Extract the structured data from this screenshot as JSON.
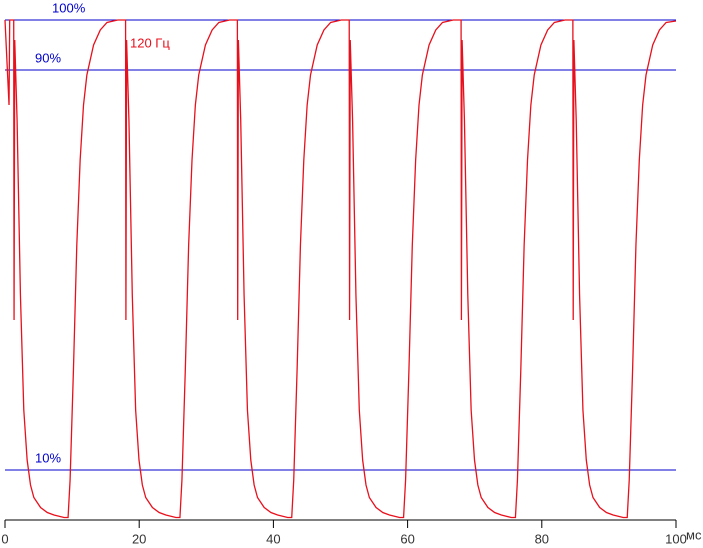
{
  "chart_data": {
    "type": "line",
    "annotation": "120 Гц",
    "x_unit": "мс",
    "xlim": [
      0,
      100
    ],
    "xticks": [
      0,
      20,
      40,
      60,
      80,
      100
    ],
    "ylim": [
      0,
      104
    ],
    "yticks": [
      {
        "value": 10,
        "label": "10%"
      },
      {
        "value": 90,
        "label": "90%"
      },
      {
        "value": 100,
        "label": "100%"
      }
    ],
    "grid_color": "#0000cc",
    "series": [
      {
        "name": "120 Гц",
        "color": "#e8101c",
        "x": [
          0,
          0.6,
          0.7,
          1.3,
          1.35,
          1.45,
          1.8,
          2.3,
          2.8,
          3.3,
          3.8,
          4.3,
          5.3,
          6.3,
          7.3,
          8.8,
          9.4,
          9.7,
          10.2,
          10.7,
          11.2,
          11.7,
          12.2,
          13.2,
          14.2,
          15.2,
          16.8,
          17.97,
          18.02,
          18.12,
          18.47,
          18.97,
          19.47,
          19.97,
          20.47,
          20.97,
          21.97,
          22.97,
          23.97,
          25.47,
          26.07,
          26.37,
          26.87,
          27.37,
          27.87,
          28.37,
          28.87,
          29.87,
          30.87,
          31.87,
          33.47,
          34.63,
          34.68,
          34.78,
          35.13,
          35.63,
          36.13,
          36.63,
          37.13,
          37.63,
          38.63,
          39.63,
          40.63,
          42.13,
          42.73,
          43.03,
          43.53,
          44.03,
          44.53,
          45.03,
          45.53,
          46.53,
          47.53,
          48.53,
          50.13,
          51.3,
          51.35,
          51.45,
          51.8,
          52.3,
          52.8,
          53.3,
          53.8,
          54.3,
          55.3,
          56.3,
          57.3,
          58.8,
          59.4,
          59.7,
          60.2,
          60.7,
          61.2,
          61.7,
          62.2,
          63.2,
          64.2,
          65.2,
          66.8,
          67.97,
          68.02,
          68.12,
          68.47,
          68.97,
          69.47,
          69.97,
          70.47,
          70.97,
          71.97,
          72.97,
          73.97,
          75.47,
          76.07,
          76.37,
          76.87,
          77.37,
          77.87,
          78.37,
          78.87,
          79.87,
          80.87,
          81.87,
          83.47,
          84.63,
          84.68,
          84.78,
          85.13,
          85.63,
          86.13,
          86.63,
          87.13,
          87.63,
          88.63,
          89.63,
          90.63,
          92.13,
          92.73,
          93.03,
          93.53,
          94.03,
          94.53,
          95.03,
          95.53,
          96.53,
          97.53,
          98.53,
          100
        ],
        "values": [
          100,
          83,
          100,
          100,
          40,
          96,
          80,
          45,
          22,
          12,
          7,
          4.5,
          2.5,
          1.5,
          1,
          0.5,
          0.5,
          8,
          30,
          55,
          72,
          83,
          89,
          95,
          98,
          99.5,
          100,
          100,
          40,
          96,
          80,
          45,
          22,
          12,
          7,
          4.5,
          2.5,
          1.5,
          1,
          0.5,
          0.5,
          8,
          30,
          55,
          72,
          83,
          89,
          95,
          98,
          99.5,
          100,
          100,
          40,
          96,
          80,
          45,
          22,
          12,
          7,
          4.5,
          2.5,
          1.5,
          1,
          0.5,
          0.5,
          8,
          30,
          55,
          72,
          83,
          89,
          95,
          98,
          99.5,
          100,
          100,
          40,
          96,
          80,
          45,
          22,
          12,
          7,
          4.5,
          2.5,
          1.5,
          1,
          0.5,
          0.5,
          8,
          30,
          55,
          72,
          83,
          89,
          95,
          98,
          99.5,
          100,
          100,
          40,
          96,
          80,
          45,
          22,
          12,
          7,
          4.5,
          2.5,
          1.5,
          1,
          0.5,
          0.5,
          8,
          30,
          55,
          72,
          83,
          89,
          95,
          98,
          99.5,
          100,
          100,
          40,
          96,
          80,
          45,
          22,
          12,
          7,
          4.5,
          2.5,
          1.5,
          1,
          0.5,
          0.5,
          8,
          30,
          55,
          72,
          83,
          89,
          95,
          98,
          99.5,
          99.8
        ]
      }
    ]
  }
}
